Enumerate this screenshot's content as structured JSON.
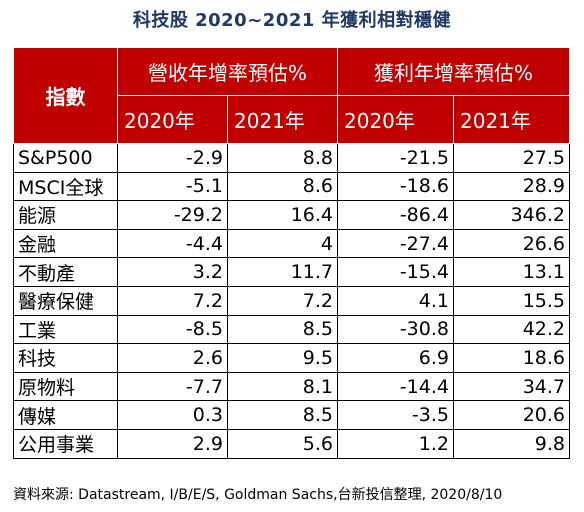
{
  "title": "科技股 2020~2021 年獲利相對穩健",
  "table": {
    "index_header": "指數",
    "group_headers": [
      "營收年增率預估%",
      "獲利年增率預估%"
    ],
    "year_headers": [
      "2020年",
      "2021年",
      "2020年",
      "2021年"
    ],
    "rows": [
      {
        "name": "S&P500",
        "values": [
          "-2.9",
          "8.8",
          "-21.5",
          "27.5"
        ]
      },
      {
        "name": "MSCI全球",
        "values": [
          "-5.1",
          "8.6",
          "-18.6",
          "28.9"
        ]
      },
      {
        "name": "能源",
        "values": [
          "-29.2",
          "16.4",
          "-86.4",
          "346.2"
        ]
      },
      {
        "name": "金融",
        "values": [
          "-4.4",
          "4",
          "-27.4",
          "26.6"
        ]
      },
      {
        "name": "不動產",
        "values": [
          "3.2",
          "11.7",
          "-15.4",
          "13.1"
        ]
      },
      {
        "name": "醫療保健",
        "values": [
          "7.2",
          "7.2",
          "4.1",
          "15.5"
        ]
      },
      {
        "name": "工業",
        "values": [
          "-8.5",
          "8.5",
          "-30.8",
          "42.2"
        ]
      },
      {
        "name": "科技",
        "values": [
          "2.6",
          "9.5",
          "6.9",
          "18.6"
        ]
      },
      {
        "name": "原物料",
        "values": [
          "-7.7",
          "8.1",
          "-14.4",
          "34.7"
        ]
      },
      {
        "name": "傳媒",
        "values": [
          "0.3",
          "8.5",
          "-3.5",
          "20.6"
        ]
      },
      {
        "name": "公用事業",
        "values": [
          "2.9",
          "5.6",
          "1.2",
          "9.8"
        ]
      }
    ]
  },
  "footnote": "資料來源: Datastream, I/B/E/S, Goldman Sachs,台新投信整理, 2020/8/10",
  "colors": {
    "header_bg": "#c00000",
    "title": "#1f3864"
  }
}
